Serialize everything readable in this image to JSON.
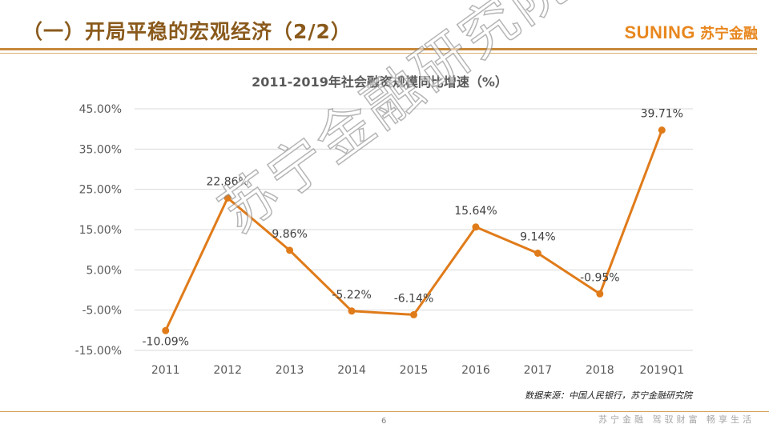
{
  "slide": {
    "title": "（一）开局平稳的宏观经济（2/2）",
    "brand_en": "SUNING",
    "brand_cn": "苏宁金融",
    "watermark": "苏宁金融研究院",
    "source": "数据来源：中国人民银行，苏宁金融研究院",
    "page_number": "6",
    "slogan": "苏宁金融 驾驭财富 畅享生活",
    "colors": {
      "title": "#8a5a1c",
      "brand": "#e8871e",
      "line": "#e07b1a",
      "rule": "#c8893a"
    }
  },
  "chart_data": {
    "type": "line",
    "title": "2011-2019年社会融资规模同比增速（%）",
    "categories": [
      "2011",
      "2012",
      "2013",
      "2014",
      "2015",
      "2016",
      "2017",
      "2018",
      "2019Q1"
    ],
    "series": [
      {
        "values": [
          -10.09,
          22.86,
          9.86,
          -5.22,
          -6.14,
          15.64,
          9.14,
          -0.95,
          39.71
        ]
      }
    ],
    "data_labels": [
      "-10.09%",
      "22.86%",
      "9.86%",
      "-5.22%",
      "-6.14%",
      "15.64%",
      "9.14%",
      "-0.95%",
      "39.71%"
    ],
    "y_ticks": [
      45,
      35,
      25,
      15,
      5,
      -5,
      -15
    ],
    "y_tick_labels": [
      "45.00%",
      "35.00%",
      "25.00%",
      "15.00%",
      "5.00%",
      "-5.00%",
      "-15.00%"
    ],
    "ylim": [
      -15,
      45
    ],
    "grid": true,
    "legend": "none",
    "xlabel": "",
    "ylabel": ""
  }
}
